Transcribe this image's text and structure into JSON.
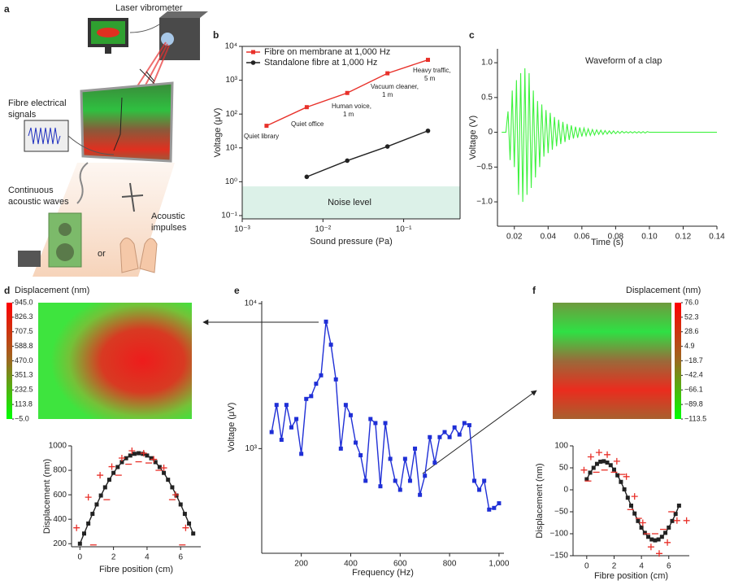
{
  "panel_labels": [
    "a",
    "b",
    "c",
    "d",
    "e",
    "f"
  ],
  "illustration": {
    "vibrometer": "Laser vibrometer",
    "signals": [
      "Fibre electrical",
      "signals"
    ],
    "waves": [
      "Continuous",
      "acoustic waves"
    ],
    "or": "or",
    "impulses": [
      "Acoustic",
      "impulses"
    ]
  },
  "chart_data": [
    {
      "type": "line",
      "xlog": true,
      "ylog": true,
      "frame": "box",
      "xlabel": "Sound pressure (Pa)",
      "ylabel": "Voltage (μV)",
      "xlim": [
        0.001,
        0.5
      ],
      "ylim": [
        0.08,
        10000
      ],
      "xticks": [
        {
          "value": 0.001,
          "label": "10⁻³"
        },
        {
          "value": 0.01,
          "label": "10⁻²"
        },
        {
          "value": 0.1,
          "label": "10⁻¹"
        }
      ],
      "yticks": [
        {
          "value": 0.1,
          "label": "10⁻¹"
        },
        {
          "value": 1,
          "label": "10⁰"
        },
        {
          "value": 10,
          "label": "10¹"
        },
        {
          "value": 100,
          "label": "10²"
        },
        {
          "value": 1000,
          "label": "10³"
        },
        {
          "value": 10000,
          "label": "10⁴"
        }
      ],
      "noise_band": [
        0.08,
        0.73
      ],
      "noise_label": "Noise level",
      "series": [
        {
          "name": "Fibre on membrane at 1,000 Hz",
          "color": "#e8312a",
          "marker": "square",
          "line": true,
          "x": [
            0.002,
            0.0063,
            0.02,
            0.063,
            0.2
          ],
          "values": [
            45,
            160,
            420,
            1600,
            4000
          ]
        },
        {
          "name": "Standalone fibre at 1,000 Hz",
          "color": "#222222",
          "marker": "circle",
          "line": true,
          "x": [
            0.0063,
            0.02,
            0.063,
            0.2
          ],
          "values": [
            1.4,
            4.2,
            11,
            32
          ]
        }
      ],
      "annotations": [
        [
          "Quiet library"
        ],
        [
          "Quiet office"
        ],
        [
          "Human voice,",
          "1 m"
        ],
        [
          "Vacuum cleaner,",
          "1 m"
        ],
        [
          "Heavy traffic,",
          "5 m"
        ]
      ]
    },
    {
      "type": "line",
      "xlabel": "Time (s)",
      "ylabel": "Voltage (V)",
      "annotation": "Waveform of a clap",
      "xlim": [
        0.01,
        0.14
      ],
      "ylim": [
        -1.35,
        1.2
      ],
      "xticks": [
        0.02,
        0.04,
        0.06,
        0.08,
        {
          "value": 0.1,
          "label": "0.10"
        },
        0.12,
        0.14
      ],
      "yticks": [
        {
          "value": 1,
          "label": "1.0"
        },
        0.5,
        0,
        {
          "value": -0.5,
          "label": "−0.5"
        },
        {
          "value": -1,
          "label": "−1.0"
        }
      ],
      "series": [
        {
          "color": "#3ef23e",
          "marker": "none",
          "line": true,
          "x": [
            0.0125,
            0.01375,
            0.015,
            0.01625,
            0.0175,
            0.01875,
            0.02,
            0.02125,
            0.0225,
            0.02375,
            0.025,
            0.02625,
            0.0275,
            0.02875,
            0.03,
            0.03125,
            0.0325,
            0.03375,
            0.035,
            0.03625,
            0.0375,
            0.03875,
            0.04,
            0.04125,
            0.0425,
            0.04375,
            0.045,
            0.04625,
            0.0475,
            0.04875,
            0.05,
            0.05125,
            0.0525,
            0.05375,
            0.055,
            0.05625,
            0.0575,
            0.05875,
            0.06,
            0.06125,
            0.0625,
            0.06375,
            0.065,
            0.06625,
            0.0675,
            0.06875,
            0.07,
            0.07125,
            0.0725,
            0.07375,
            0.075,
            0.07625,
            0.0775,
            0.07875,
            0.08,
            0.08125,
            0.0825,
            0.08375,
            0.085,
            0.08625,
            0.0875,
            0.08875,
            0.09,
            0.09125,
            0.0925,
            0.09375,
            0.095,
            0.09625,
            0.0975,
            0.09875,
            0.1,
            0.12,
            0.14
          ],
          "values": [
            0,
            0,
            0,
            0.3,
            -0.4,
            0.6,
            -0.5,
            0.75,
            -0.9,
            0.85,
            -1.0,
            0.92,
            -0.9,
            0.85,
            -0.8,
            0.6,
            -0.65,
            0.45,
            -0.5,
            0.4,
            -0.35,
            0.32,
            -0.3,
            0.28,
            -0.25,
            0.22,
            -0.2,
            0.18,
            -0.17,
            0.15,
            -0.14,
            0.12,
            -0.11,
            0.1,
            -0.09,
            0.08,
            -0.08,
            0.07,
            -0.06,
            0.06,
            -0.05,
            0.05,
            -0.045,
            0.04,
            -0.04,
            0.035,
            -0.03,
            0.03,
            -0.03,
            0.025,
            -0.025,
            0.02,
            -0.02,
            0.02,
            -0.02,
            0.015,
            -0.015,
            0.015,
            -0.01,
            0.01,
            -0.01,
            0.01,
            -0.01,
            0.01,
            -0.01,
            0.01,
            -0.01,
            0.01,
            -0.01,
            0.01,
            0,
            0,
            0
          ]
        }
      ]
    },
    {
      "type": "heatmap",
      "title": "Displacement (nm)",
      "clim": [
        -5,
        945
      ],
      "colorbar_ticks": [
        {
          "value": 945,
          "label": "945.0"
        },
        {
          "value": 826.3,
          "label": "826.3"
        },
        {
          "value": 707.5,
          "label": "707.5"
        },
        {
          "value": 588.8,
          "label": "588.8"
        },
        {
          "value": 470,
          "label": "470.0"
        },
        {
          "value": 351.3,
          "label": "351.3"
        },
        {
          "value": 232.5,
          "label": "232.5"
        },
        {
          "value": 113.8,
          "label": "113.8"
        },
        {
          "value": -5,
          "label": "−5.0"
        }
      ]
    },
    {
      "type": "line",
      "xlabel": "Fibre position (cm)",
      "ylabel": "Displacement (nm)",
      "xlim": [
        -0.5,
        7.2
      ],
      "ylim": [
        175,
        1000
      ],
      "xticks": [
        0,
        2,
        4,
        6
      ],
      "yticks": [
        200,
        400,
        600,
        800,
        1000
      ],
      "series": [
        {
          "color": "#222222",
          "marker": "square",
          "line": true,
          "x": [
            0,
            0.25,
            0.5,
            0.75,
            1,
            1.25,
            1.5,
            1.75,
            2,
            2.25,
            2.5,
            2.75,
            3,
            3.25,
            3.5,
            3.75,
            4,
            4.25,
            4.5,
            4.75,
            5,
            5.25,
            5.5,
            5.75,
            6,
            6.25,
            6.5,
            6.75
          ],
          "values": [
            200,
            283,
            365,
            444,
            521,
            594,
            661,
            723,
            779,
            827,
            867,
            899,
            921,
            935,
            940,
            935,
            921,
            899,
            867,
            827,
            779,
            723,
            661,
            594,
            521,
            444,
            365,
            283
          ]
        },
        {
          "color": "#e8312a",
          "marker": "plus",
          "line": false,
          "x": [
            -0.2,
            0.5,
            1.2,
            1.9,
            2.5,
            3.1,
            3.8,
            4.4,
            5.0,
            5.7,
            6.3
          ],
          "values": [
            330,
            580,
            760,
            830,
            900,
            960,
            940,
            890,
            820,
            600,
            330
          ]
        },
        {
          "color": "#e8312a",
          "marker": "minus",
          "line": false,
          "x": [
            0.8,
            1.6,
            2.3,
            2.9,
            3.5,
            4.1,
            4.7,
            5.5,
            6.1
          ],
          "values": [
            190,
            560,
            760,
            850,
            870,
            860,
            800,
            560,
            190
          ]
        }
      ]
    },
    {
      "type": "line",
      "ylog": true,
      "xlabel": "Frequency (Hz)",
      "ylabel": "Voltage (μV)",
      "xlim": [
        40,
        1020
      ],
      "ylim": [
        190,
        10400
      ],
      "xticks": [
        200,
        400,
        600,
        800,
        {
          "value": 1000,
          "label": "1,000"
        }
      ],
      "yticks": [
        {
          "value": 1000,
          "label": "10³"
        },
        {
          "value": 10000,
          "label": "10⁴"
        }
      ],
      "series": [
        {
          "color": "#1f2fd6",
          "marker": "square",
          "line": true,
          "x": [
            80,
            100,
            120,
            140,
            160,
            180,
            200,
            220,
            240,
            260,
            280,
            300,
            320,
            340,
            360,
            380,
            400,
            420,
            440,
            460,
            480,
            500,
            520,
            540,
            560,
            580,
            600,
            620,
            640,
            660,
            680,
            700,
            720,
            740,
            760,
            780,
            800,
            820,
            840,
            860,
            880,
            900,
            920,
            940,
            960,
            980,
            1000
          ],
          "values": [
            1300,
            2000,
            1150,
            2000,
            1400,
            1600,
            920,
            2200,
            2300,
            2800,
            3200,
            7500,
            5200,
            3000,
            1000,
            2000,
            1700,
            1100,
            900,
            600,
            1600,
            1500,
            550,
            1500,
            850,
            600,
            520,
            850,
            600,
            1000,
            480,
            650,
            1200,
            800,
            1200,
            1300,
            1200,
            1400,
            1250,
            1500,
            1450,
            600,
            520,
            600,
            380,
            390,
            420
          ]
        }
      ]
    },
    {
      "type": "heatmap",
      "title": "Displacement (nm)",
      "clim": [
        -113.5,
        76
      ],
      "colorbar_ticks": [
        {
          "value": 76,
          "label": "76.0"
        },
        {
          "value": 52.3,
          "label": "52.3"
        },
        {
          "value": 28.6,
          "label": "28.6"
        },
        {
          "value": 4.9,
          "label": "4.9"
        },
        {
          "value": -18.7,
          "label": "−18.7"
        },
        {
          "value": -42.4,
          "label": "−42.4"
        },
        {
          "value": -66.1,
          "label": "−66.1"
        },
        {
          "value": -89.8,
          "label": "−89.8"
        },
        {
          "value": -113.5,
          "label": "−113.5"
        }
      ]
    },
    {
      "type": "line",
      "xlabel": "Fibre position (cm)",
      "ylabel": "Displacement (nm)",
      "xlim": [
        -1,
        7.5
      ],
      "ylim": [
        -150,
        100
      ],
      "xticks": [
        0,
        2,
        4,
        6
      ],
      "yticks": [
        100,
        50,
        0,
        {
          "value": -50,
          "label": "−50"
        },
        {
          "value": -100,
          "label": "−100"
        },
        {
          "value": -150,
          "label": "−150"
        }
      ],
      "series": [
        {
          "color": "#222222",
          "marker": "square",
          "line": true,
          "x": [
            0,
            0.25,
            0.5,
            0.75,
            1,
            1.25,
            1.5,
            1.75,
            2,
            2.25,
            2.5,
            2.75,
            3,
            3.25,
            3.5,
            3.75,
            4,
            4.25,
            4.5,
            4.75,
            5,
            5.25,
            5.5,
            5.75,
            6,
            6.25,
            6.5,
            6.75
          ],
          "values": [
            24,
            39,
            50,
            59,
            64,
            65,
            62,
            56,
            46,
            33,
            18,
            1,
            -18,
            -36,
            -54,
            -71,
            -86,
            -98,
            -107,
            -113,
            -115,
            -113,
            -107,
            -98,
            -86,
            -71,
            -55,
            -36
          ]
        },
        {
          "color": "#e8312a",
          "marker": "plus",
          "line": false,
          "x": [
            -0.2,
            0.3,
            0.9,
            1.5,
            2.2,
            2.9,
            3.5,
            4.1,
            4.7,
            5.3,
            5.9,
            6.6,
            7.3
          ],
          "values": [
            45,
            75,
            85,
            80,
            65,
            30,
            -15,
            -75,
            -130,
            -145,
            -120,
            -70,
            -70
          ]
        },
        {
          "color": "#e8312a",
          "marker": "minus",
          "line": false,
          "x": [
            0.1,
            0.7,
            1.3,
            2,
            2.6,
            3.2,
            3.8,
            4.4,
            5,
            5.6,
            6.2
          ],
          "values": [
            20,
            40,
            45,
            40,
            35,
            -45,
            -65,
            -100,
            -100,
            -90,
            -50
          ]
        }
      ]
    }
  ]
}
